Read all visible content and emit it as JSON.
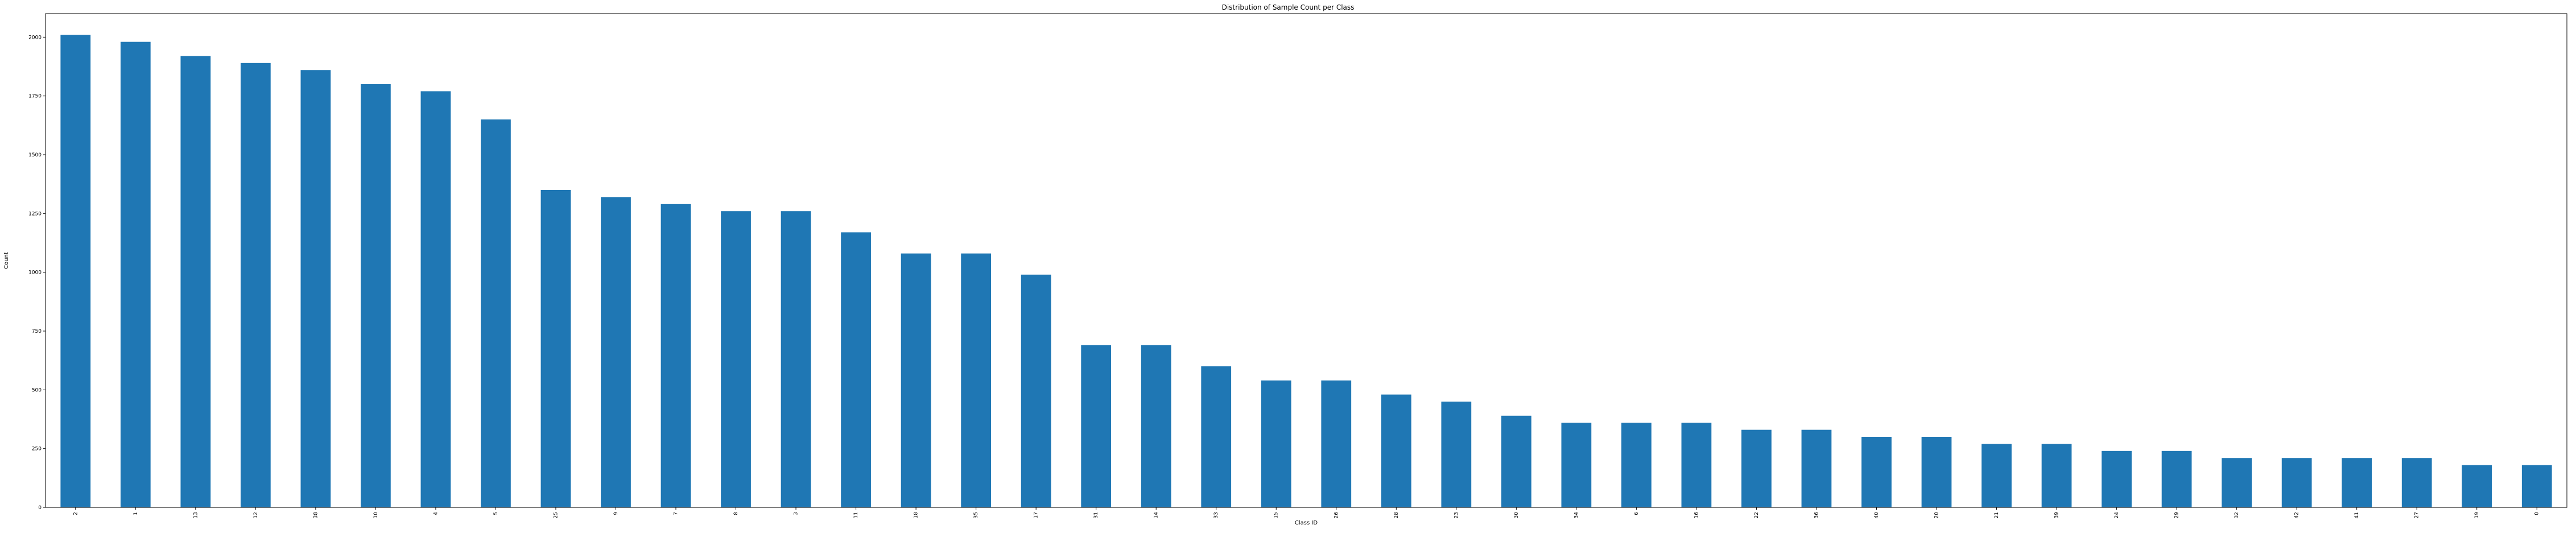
{
  "chart_data": {
    "type": "bar",
    "title": "Distribution of Sample Count per Class",
    "xlabel": "Class ID",
    "ylabel": "Count",
    "ylim": [
      0,
      2100
    ],
    "yticks": [
      0,
      250,
      500,
      750,
      1000,
      1250,
      1500,
      1750,
      2000
    ],
    "grid": false,
    "legend": "none",
    "bar_color": "#1f77b4",
    "categories": [
      "2",
      "1",
      "13",
      "12",
      "38",
      "10",
      "4",
      "5",
      "25",
      "9",
      "7",
      "8",
      "3",
      "11",
      "18",
      "35",
      "17",
      "31",
      "14",
      "33",
      "15",
      "26",
      "28",
      "23",
      "30",
      "34",
      "6",
      "16",
      "22",
      "36",
      "40",
      "20",
      "21",
      "39",
      "24",
      "29",
      "32",
      "42",
      "41",
      "27",
      "19",
      "0"
    ],
    "values": [
      2010,
      1980,
      1920,
      1890,
      1860,
      1800,
      1770,
      1650,
      1350,
      1320,
      1290,
      1260,
      1260,
      1170,
      1080,
      1080,
      990,
      690,
      690,
      600,
      540,
      540,
      480,
      450,
      390,
      360,
      360,
      360,
      330,
      330,
      300,
      300,
      270,
      270,
      240,
      240,
      210,
      210,
      210,
      210,
      180,
      180
    ]
  }
}
